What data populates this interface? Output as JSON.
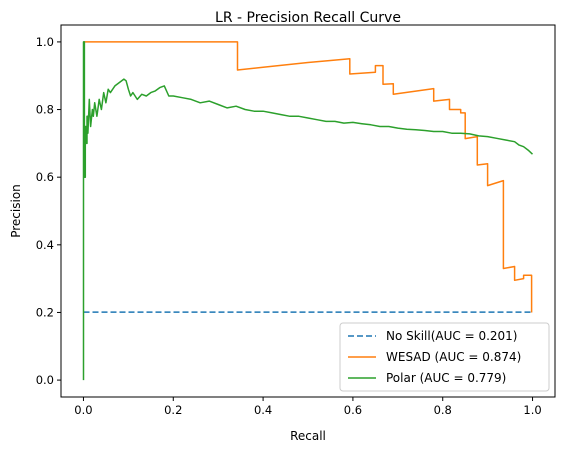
{
  "chart_data": {
    "type": "line",
    "title": "LR - Precision Recall Curve",
    "xlabel": "Recall",
    "ylabel": "Precision",
    "xlim": [
      -0.05,
      1.05
    ],
    "ylim": [
      -0.05,
      1.05
    ],
    "xticks": [
      "0.0",
      "0.2",
      "0.4",
      "0.6",
      "0.8",
      "1.0"
    ],
    "yticks": [
      "0.0",
      "0.2",
      "0.4",
      "0.6",
      "0.8",
      "1.0"
    ],
    "grid": false,
    "legend_position": "lower-right",
    "series": [
      {
        "name": "No Skill(AUC = 0.201)",
        "color": "#1f77b4",
        "dash": "dashed",
        "x": [
          0.0,
          1.0
        ],
        "y": [
          0.201,
          0.201
        ]
      },
      {
        "name": "WESAD (AUC = 0.874)",
        "color": "#ff7f0e",
        "dash": "solid",
        "x": [
          0.0,
          0.0,
          0.343,
          0.343,
          0.4,
          0.45,
          0.5,
          0.55,
          0.593,
          0.593,
          0.65,
          0.65,
          0.667,
          0.667,
          0.69,
          0.69,
          0.78,
          0.78,
          0.815,
          0.815,
          0.84,
          0.84,
          0.85,
          0.85,
          0.877,
          0.877,
          0.9,
          0.9,
          0.935,
          0.935,
          0.96,
          0.96,
          0.98,
          0.98,
          0.998,
          0.998
        ],
        "y": [
          1.0,
          1.0,
          1.0,
          0.917,
          0.925,
          0.932,
          0.939,
          0.945,
          0.95,
          0.905,
          0.91,
          0.93,
          0.93,
          0.875,
          0.876,
          0.845,
          0.862,
          0.825,
          0.83,
          0.8,
          0.8,
          0.79,
          0.79,
          0.714,
          0.72,
          0.636,
          0.64,
          0.575,
          0.59,
          0.33,
          0.336,
          0.295,
          0.3,
          0.31,
          0.31,
          0.2
        ]
      },
      {
        "name": "Polar (AUC = 0.779)",
        "color": "#2ca02c",
        "dash": "solid",
        "x": [
          0.0,
          0.0,
          0.002,
          0.002,
          0.004,
          0.004,
          0.006,
          0.006,
          0.008,
          0.008,
          0.01,
          0.01,
          0.013,
          0.016,
          0.02,
          0.022,
          0.025,
          0.03,
          0.035,
          0.04,
          0.045,
          0.05,
          0.055,
          0.06,
          0.07,
          0.08,
          0.09,
          0.095,
          0.1,
          0.105,
          0.11,
          0.12,
          0.13,
          0.14,
          0.15,
          0.16,
          0.17,
          0.18,
          0.19,
          0.2,
          0.22,
          0.24,
          0.26,
          0.28,
          0.3,
          0.32,
          0.34,
          0.36,
          0.38,
          0.4,
          0.42,
          0.44,
          0.46,
          0.48,
          0.5,
          0.52,
          0.54,
          0.56,
          0.58,
          0.6,
          0.62,
          0.64,
          0.66,
          0.68,
          0.7,
          0.72,
          0.74,
          0.76,
          0.78,
          0.8,
          0.82,
          0.84,
          0.86,
          0.88,
          0.9,
          0.92,
          0.94,
          0.96,
          0.97,
          0.98,
          0.99,
          1.0
        ],
        "y": [
          0.0,
          1.0,
          1.0,
          0.6,
          0.6,
          0.75,
          0.75,
          0.7,
          0.7,
          0.78,
          0.78,
          0.73,
          0.83,
          0.75,
          0.8,
          0.78,
          0.82,
          0.78,
          0.83,
          0.8,
          0.85,
          0.82,
          0.86,
          0.85,
          0.87,
          0.88,
          0.89,
          0.885,
          0.86,
          0.84,
          0.85,
          0.83,
          0.845,
          0.84,
          0.85,
          0.855,
          0.865,
          0.87,
          0.84,
          0.84,
          0.835,
          0.83,
          0.82,
          0.825,
          0.815,
          0.805,
          0.81,
          0.8,
          0.795,
          0.795,
          0.79,
          0.785,
          0.78,
          0.78,
          0.775,
          0.77,
          0.765,
          0.765,
          0.76,
          0.762,
          0.758,
          0.755,
          0.75,
          0.75,
          0.745,
          0.742,
          0.74,
          0.738,
          0.735,
          0.735,
          0.73,
          0.73,
          0.728,
          0.722,
          0.72,
          0.715,
          0.71,
          0.705,
          0.695,
          0.69,
          0.68,
          0.668
        ]
      }
    ]
  }
}
